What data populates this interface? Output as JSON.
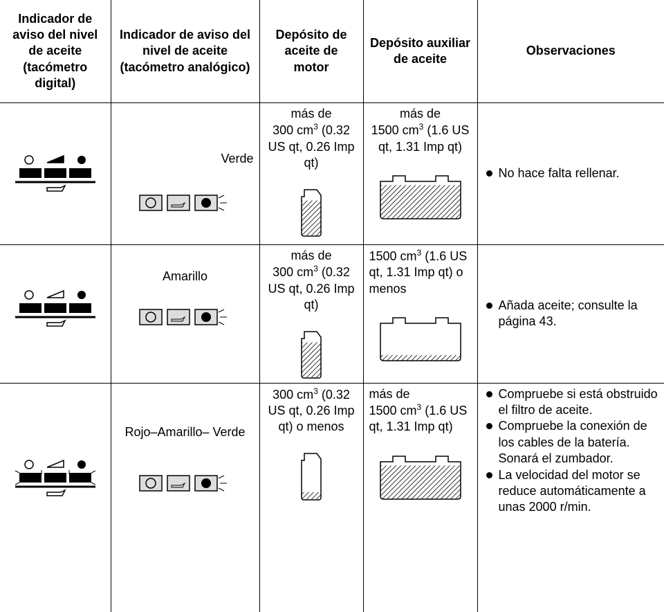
{
  "table": {
    "header": [
      "Indicador de aviso del nivel de aceite (tacómetro digital)",
      "Indicador de aviso del nivel de aceite (tacómetro analógico)",
      "Depósito de aceite de motor",
      "Depósito auxiliar de aceite",
      "Observaciones"
    ],
    "rows": [
      {
        "analog": "Verde",
        "engine": {
          "pre": "más de",
          "amount": "300 cm",
          "exp": "3",
          "post": "(0.32 US qt, 0.26 Imp qt)"
        },
        "aux": {
          "pre": "más de",
          "amount": "1500 cm",
          "exp": "3",
          "post": "(1.6 US qt, 1.31 Imp qt)"
        },
        "notes": [
          "No hace falta rellenar."
        ]
      },
      {
        "analog": "Amarillo",
        "engine": {
          "pre": "más de",
          "amount": "300 cm",
          "exp": "3",
          "post": "(0.32 US qt, 0.26 Imp qt)"
        },
        "aux": {
          "amount": "1500 cm",
          "exp": "3",
          "post": "(1.6 US qt, 1.31 Imp qt) o menos"
        },
        "notes": [
          "Añada aceite; consulte la página 43."
        ]
      },
      {
        "analog": "Rojo–Amarillo– Verde",
        "engine": {
          "amount": "300 cm",
          "exp": "3",
          "post": "(0.32 US qt, 0.26 Imp qt) o menos"
        },
        "aux": {
          "pre": "más de",
          "amount": "1500 cm",
          "exp": "3",
          "post": "(1.6 US qt, 1.31 Imp qt)"
        },
        "notes": [
          "Compruebe si está obstruido el filtro de aceite.",
          "Compruebe la conexión de los cables de la batería. Sonará el zumbador.",
          "La velocidad del motor se reduce automáticamente a unas 2000 r/min."
        ]
      }
    ]
  }
}
